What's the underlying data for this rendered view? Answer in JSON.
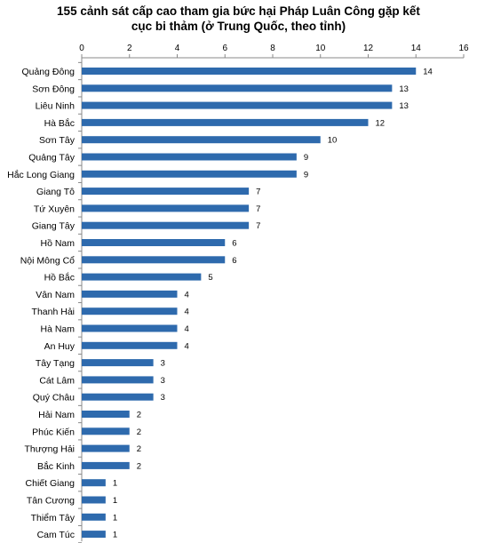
{
  "chart_data": {
    "type": "bar",
    "orientation": "horizontal",
    "title_lines": [
      "155 cảnh sát cấp cao tham gia bức hại Pháp Luân Công gặp kết",
      "cục bi thảm (ở Trung Quốc, theo tỉnh)"
    ],
    "xlabel": "",
    "ylabel": "",
    "xlim": [
      0,
      16
    ],
    "x_ticks": [
      "0",
      "2",
      "4",
      "6",
      "8",
      "10",
      "12",
      "14",
      "16"
    ],
    "x_tick_values": [
      0,
      2,
      4,
      6,
      8,
      10,
      12,
      14,
      16
    ],
    "grid": false,
    "legend": "none",
    "bar_color": "#2e6aad",
    "categories": [
      "Quảng Đông",
      "Sơn Đông",
      "Liêu Ninh",
      "Hà Bắc",
      "Sơn Tây",
      "Quảng Tây",
      "Hắc Long Giang",
      "Giang Tô",
      "Tứ Xuyên",
      "Giang Tây",
      "Hồ Nam",
      "Nội Mông Cổ",
      "Hồ Bắc",
      "Vân Nam",
      "Thanh Hải",
      "Hà Nam",
      "An Huy",
      "Tây Tạng",
      "Cát Lâm",
      "Quý Châu",
      "Hải Nam",
      "Phúc Kiến",
      "Thượng Hải",
      "Bắc Kinh",
      "Chiết Giang",
      "Tân Cương",
      "Thiểm Tây",
      "Cam Túc"
    ],
    "values": [
      14,
      13,
      13,
      12,
      10,
      9,
      9,
      7,
      7,
      7,
      6,
      6,
      5,
      4,
      4,
      4,
      4,
      3,
      3,
      3,
      2,
      2,
      2,
      2,
      1,
      1,
      1,
      1
    ]
  }
}
